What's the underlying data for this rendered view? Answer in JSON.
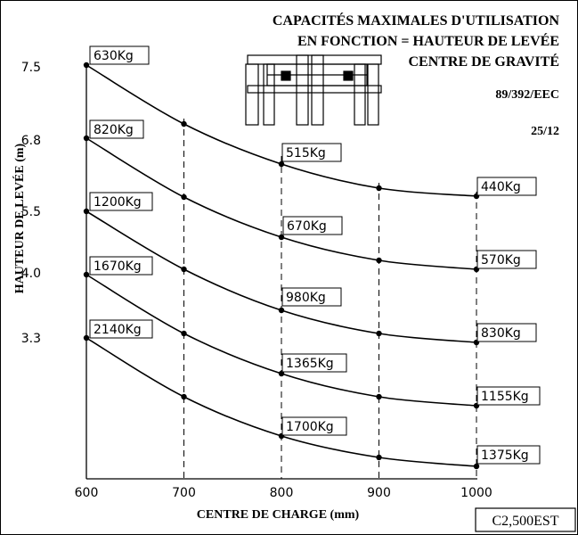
{
  "chart_data": {
    "type": "line",
    "title_lines": [
      "CAPACITÉS MAXIMALES D'UTILISATION",
      "EN FONCTION = HAUTEUR DE LEVÉE",
      "CENTRE DE GRAVITÉ"
    ],
    "directive": "89/392/EEC",
    "ratio": "25/12",
    "model": "C2,500EST",
    "xlabel": "CENTRE DE CHARGE (mm)",
    "ylabel": "HAUTEUR DE LEVÉE (m)",
    "x": [
      600,
      700,
      800,
      900,
      1000
    ],
    "x_ticks": [
      "600",
      "700",
      "800",
      "900",
      "1000"
    ],
    "y_ticks": [
      "7.5",
      "6.8",
      "5.5",
      "4.0",
      "3.3"
    ],
    "grid_x": "dashed vertical",
    "series": [
      {
        "height": "7.5",
        "labels": [
          "630Kg",
          "515Kg",
          "440Kg"
        ]
      },
      {
        "height": "6.8",
        "labels": [
          "820Kg",
          "670Kg",
          "570Kg"
        ]
      },
      {
        "height": "5.5",
        "labels": [
          "1200Kg",
          "980Kg",
          "830Kg"
        ]
      },
      {
        "height": "4.0",
        "labels": [
          "1670Kg",
          "1365Kg",
          "1155Kg"
        ]
      },
      {
        "height": "3.3",
        "labels": [
          "2140Kg",
          "1700Kg",
          "1375Kg"
        ]
      }
    ]
  }
}
